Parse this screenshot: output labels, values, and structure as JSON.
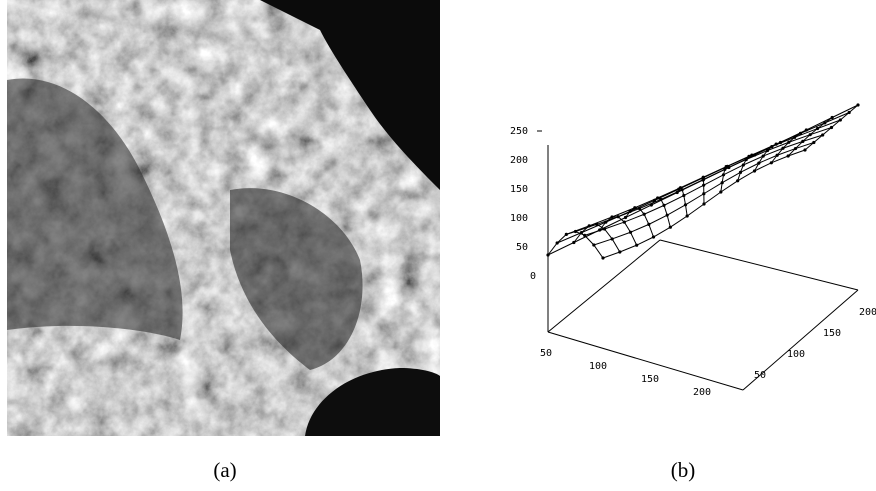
{
  "figure": {
    "panels": [
      {
        "caption": "(a)"
      },
      {
        "caption": "(b)",
        "z_ticks": [
          250,
          200,
          150,
          100,
          50,
          0
        ],
        "x_ticks": [
          50,
          100,
          150,
          200
        ],
        "y_ticks": [
          50,
          100,
          150,
          200
        ]
      }
    ]
  }
}
